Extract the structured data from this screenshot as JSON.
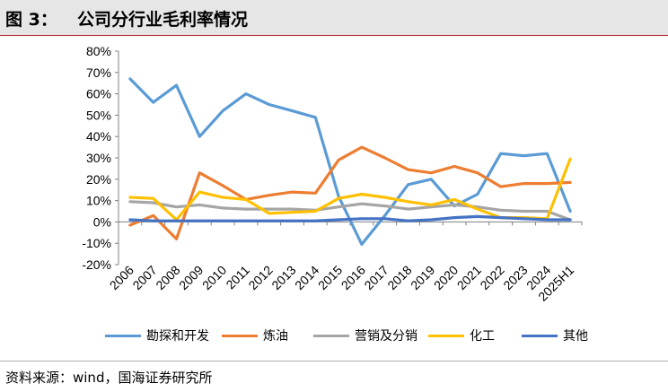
{
  "header": {
    "figure_label": "图 3：",
    "title": "公司分行业毛利率情况"
  },
  "source_note": "资料来源：wind，国海证券研究所",
  "chart_data": {
    "type": "line",
    "title": "公司分行业毛利率情况",
    "categories": [
      "2006",
      "2007",
      "2008",
      "2009",
      "2010",
      "2011",
      "2012",
      "2013",
      "2014",
      "2015",
      "2016",
      "2017",
      "2018",
      "2019",
      "2020",
      "2021",
      "2022",
      "2023",
      "2024",
      "2025H1"
    ],
    "yticks": [
      "80%",
      "70%",
      "60%",
      "50%",
      "40%",
      "30%",
      "20%",
      "10%",
      "0%",
      "-10%",
      "-20%"
    ],
    "ylim": [
      -20,
      80
    ],
    "ystep": 10,
    "grid": false,
    "legend_position": "bottom",
    "series": [
      {
        "name": "勘探和开发",
        "color": "#5b9bd5",
        "values": [
          67,
          56,
          64,
          40,
          52,
          60,
          55,
          52,
          49,
          12,
          -10.5,
          3,
          17.5,
          20,
          7.5,
          13,
          32,
          31,
          32,
          5
        ]
      },
      {
        "name": "炼油",
        "color": "#ed7d31",
        "values": [
          -1.5,
          3,
          -8,
          23,
          17,
          10.5,
          12.5,
          14,
          13.5,
          29,
          35,
          30,
          24.5,
          23,
          26,
          23,
          16.5,
          18,
          18,
          18.5
        ]
      },
      {
        "name": "营销及分销",
        "color": "#a5a5a5",
        "values": [
          9.5,
          9,
          7,
          8,
          6.5,
          6,
          6,
          6,
          5.5,
          7,
          8.5,
          7.5,
          6,
          7,
          8,
          7,
          5.5,
          5,
          5,
          1
        ]
      },
      {
        "name": "化工",
        "color": "#ffc000",
        "values": [
          11.5,
          11,
          1,
          14,
          11.5,
          10.5,
          4,
          4.5,
          5,
          11,
          13,
          11.5,
          9.5,
          8,
          10.5,
          6,
          2,
          2,
          1.5,
          29.5
        ]
      },
      {
        "name": "其他",
        "color": "#4472c4",
        "values": [
          1,
          0.5,
          0.5,
          0.5,
          0.5,
          0.5,
          0.5,
          0.5,
          0.5,
          1,
          1.5,
          1.5,
          0.5,
          1,
          2,
          2.5,
          2,
          1.5,
          1,
          1
        ]
      }
    ]
  }
}
